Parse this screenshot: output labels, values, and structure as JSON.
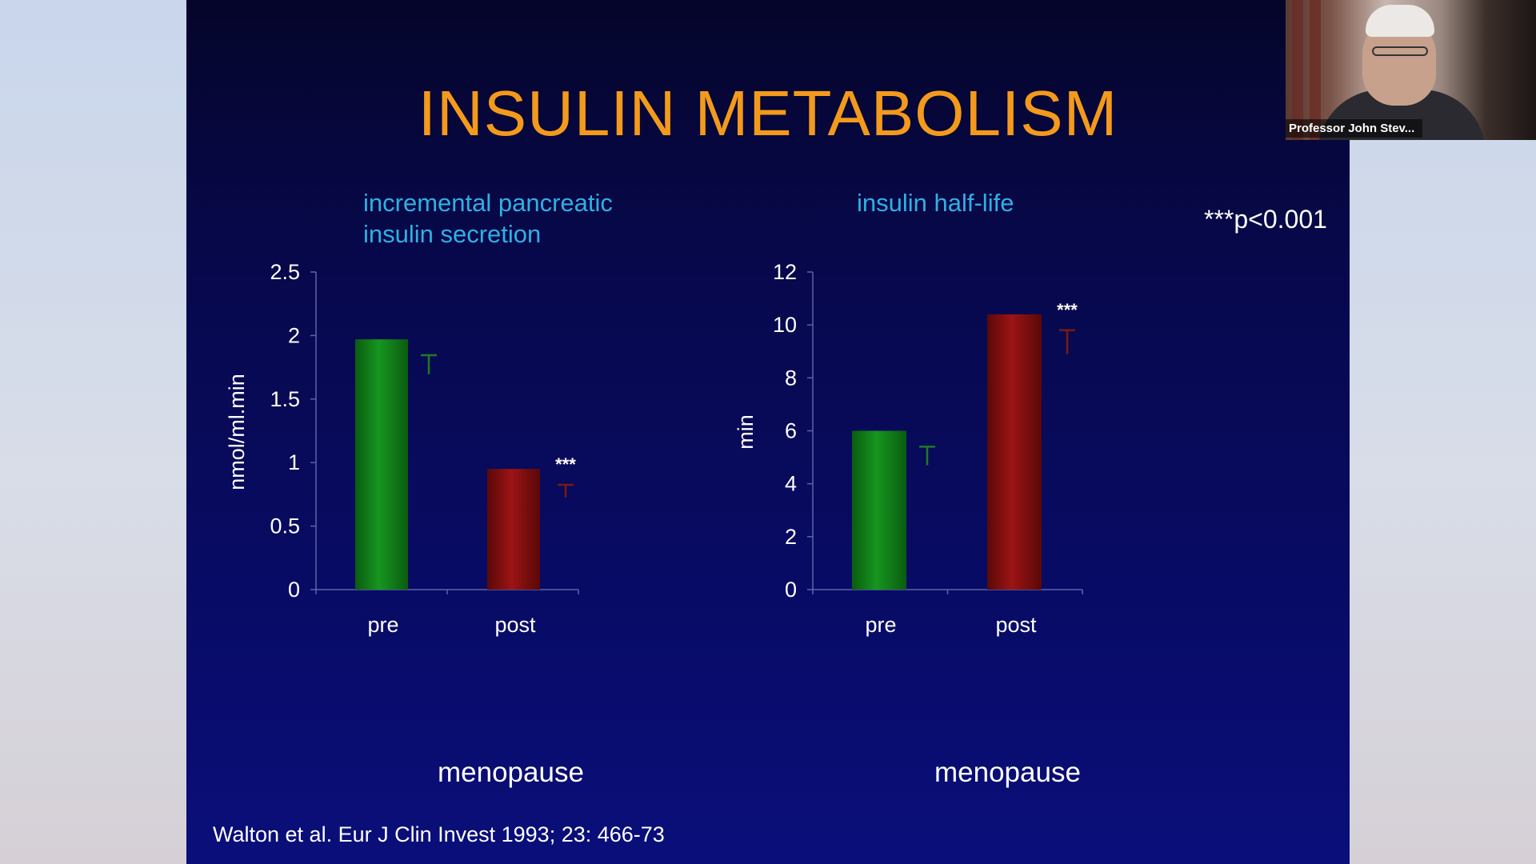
{
  "slide": {
    "title": "INSULIN METABOLISM",
    "significance_note": "***p<0.001",
    "citation": "Walton et al. Eur J Clin Invest 1993; 23: 466-73",
    "colors": {
      "title": "#f39a1c",
      "subtitle": "#2fb0e4",
      "pre_bar": "#0f7a16",
      "post_bar": "#7a0f0f"
    }
  },
  "webcam": {
    "name_label": "Professor John Stev..."
  },
  "chart_data": [
    {
      "type": "bar",
      "title_line1": "incremental pancreatic",
      "title_line2": "insulin secretion",
      "xlabel": "menopause",
      "ylabel": "nmol/ml.min",
      "categories": [
        "pre",
        "post"
      ],
      "values": [
        1.97,
        0.95
      ],
      "error_bars": [
        0.15,
        0.1
      ],
      "significance": [
        "",
        "***"
      ],
      "ylim": [
        0,
        2.5
      ],
      "yticks": [
        "0",
        "0.5",
        "1",
        "1.5",
        "2",
        "2.5"
      ],
      "ytick_values": [
        0,
        0.5,
        1,
        1.5,
        2,
        2.5
      ]
    },
    {
      "type": "bar",
      "title_line1": "insulin half-life",
      "xlabel": "menopause",
      "ylabel": "min",
      "categories": [
        "pre",
        "post"
      ],
      "values": [
        6.0,
        10.4
      ],
      "error_bars": [
        0.7,
        0.9
      ],
      "significance": [
        "",
        "***"
      ],
      "ylim": [
        0,
        12
      ],
      "yticks": [
        "0",
        "2",
        "4",
        "6",
        "8",
        "10",
        "12"
      ],
      "ytick_values": [
        0,
        2,
        4,
        6,
        8,
        10,
        12
      ]
    }
  ]
}
